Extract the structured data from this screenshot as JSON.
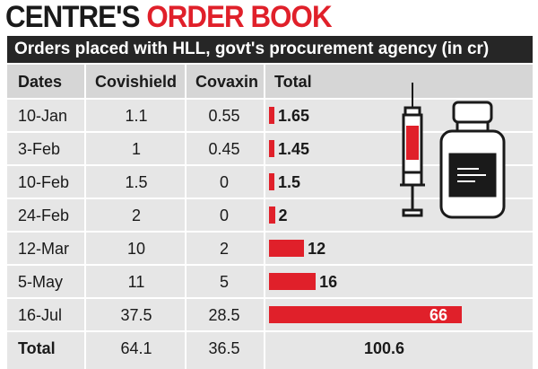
{
  "headline": {
    "part1": "CENTRE'S",
    "part2": "ORDER BOOK"
  },
  "subtitle": "Orders placed with HLL, govt's procurement agency (in cr)",
  "columns": [
    "Dates",
    "Covishield",
    "Covaxin",
    "Total"
  ],
  "rows": [
    {
      "date": "10-Jan",
      "covishield": "1.1",
      "covaxin": "0.55",
      "total": "1.65"
    },
    {
      "date": "3-Feb",
      "covishield": "1",
      "covaxin": "0.45",
      "total": "1.45"
    },
    {
      "date": "10-Feb",
      "covishield": "1.5",
      "covaxin": "0",
      "total": "1.5"
    },
    {
      "date": "24-Feb",
      "covishield": "2",
      "covaxin": "0",
      "total": "2"
    },
    {
      "date": "12-Mar",
      "covishield": "10",
      "covaxin": "2",
      "total": "12"
    },
    {
      "date": "5-May",
      "covishield": "11",
      "covaxin": "5",
      "total": "16"
    },
    {
      "date": "16-Jul",
      "covishield": "37.5",
      "covaxin": "28.5",
      "total": "66"
    }
  ],
  "total_row": {
    "label": "Total",
    "covishield": "64.1",
    "covaxin": "36.5",
    "total": "100.6"
  },
  "colors": {
    "accent": "#e0202a",
    "header_bg": "#262626",
    "table_bg": "#e6e6e6",
    "header_row_bg": "#d6d6d6"
  },
  "chart_data": {
    "type": "table",
    "title": "CENTRE'S ORDER BOOK",
    "subtitle": "Orders placed with HLL, govt's procurement agency (in cr)",
    "categories": [
      "10-Jan",
      "3-Feb",
      "10-Feb",
      "24-Feb",
      "12-Mar",
      "5-May",
      "16-Jul"
    ],
    "series": [
      {
        "name": "Covishield",
        "values": [
          1.1,
          1,
          1.5,
          2,
          10,
          11,
          37.5
        ]
      },
      {
        "name": "Covaxin",
        "values": [
          0.55,
          0.45,
          0,
          0,
          2,
          5,
          28.5
        ]
      },
      {
        "name": "Total",
        "values": [
          1.65,
          1.45,
          1.5,
          2,
          12,
          16,
          66
        ]
      }
    ],
    "totals": {
      "Covishield": 64.1,
      "Covaxin": 36.5,
      "Total": 100.6
    },
    "bar_series": "Total"
  }
}
